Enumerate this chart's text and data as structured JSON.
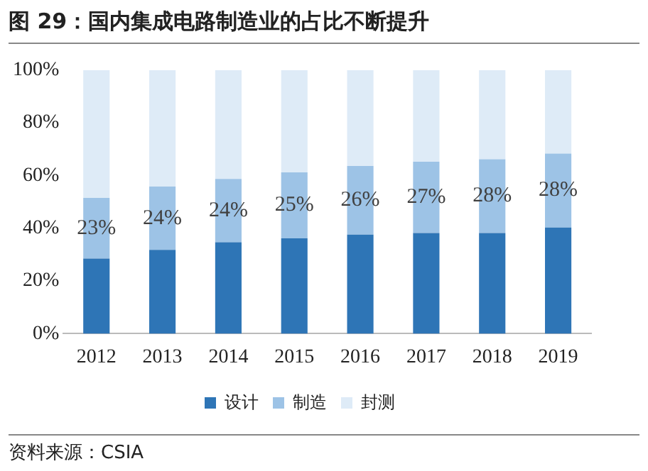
{
  "chart_data": {
    "type": "bar",
    "title": "图 29：国内集成电路制造业的占比不断提升",
    "categories": [
      "2012",
      "2013",
      "2014",
      "2015",
      "2016",
      "2017",
      "2018",
      "2019"
    ],
    "stacked": true,
    "series": [
      {
        "name": "设计",
        "color": "#2e75b6",
        "values": [
          28.5,
          31.8,
          34.7,
          36.2,
          37.6,
          38.2,
          38.2,
          40.3
        ]
      },
      {
        "name": "制造",
        "color": "#9dc3e6",
        "values": [
          23,
          24,
          24,
          25,
          26,
          27,
          28,
          28
        ],
        "value_labels": [
          "23%",
          "24%",
          "24%",
          "25%",
          "26%",
          "27%",
          "28%",
          "28%"
        ]
      },
      {
        "name": "封测",
        "color": "#deebf7",
        "values": [
          48.5,
          44.2,
          41.3,
          38.8,
          36.4,
          34.8,
          33.8,
          31.7
        ]
      }
    ],
    "ylim": [
      0,
      100
    ],
    "yticks": [
      {
        "value": 0,
        "label": "0%"
      },
      {
        "value": 20,
        "label": "20%"
      },
      {
        "value": 40,
        "label": "40%"
      },
      {
        "value": 60,
        "label": "60%"
      },
      {
        "value": 80,
        "label": "80%"
      },
      {
        "value": 100,
        "label": "100%"
      }
    ],
    "grid": false,
    "legend": "bottom",
    "annotations": [
      "资料来源：CSIA"
    ]
  }
}
